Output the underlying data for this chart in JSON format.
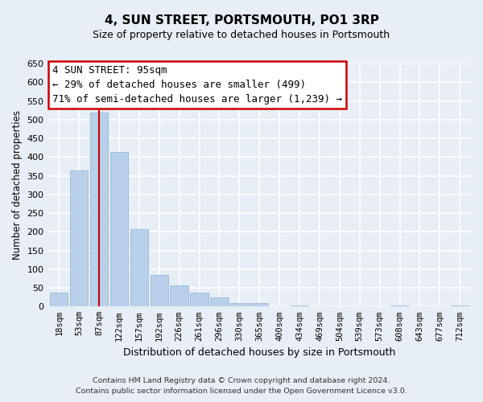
{
  "title": "4, SUN STREET, PORTSMOUTH, PO1 3RP",
  "subtitle": "Size of property relative to detached houses in Portsmouth",
  "xlabel": "Distribution of detached houses by size in Portsmouth",
  "ylabel": "Number of detached properties",
  "bar_labels": [
    "18sqm",
    "53sqm",
    "87sqm",
    "122sqm",
    "157sqm",
    "192sqm",
    "226sqm",
    "261sqm",
    "296sqm",
    "330sqm",
    "365sqm",
    "400sqm",
    "434sqm",
    "469sqm",
    "504sqm",
    "539sqm",
    "573sqm",
    "608sqm",
    "643sqm",
    "677sqm",
    "712sqm"
  ],
  "bar_values": [
    38,
    365,
    519,
    413,
    207,
    84,
    56,
    37,
    25,
    10,
    10,
    0,
    3,
    0,
    0,
    0,
    0,
    2,
    0,
    0,
    2
  ],
  "bar_color": "#b8d0ea",
  "bar_edge_color": "#9ab8d8",
  "vline_x_idx": 2,
  "vline_color": "#cc0000",
  "annotation_title": "4 SUN STREET: 95sqm",
  "annotation_line1": "← 29% of detached houses are smaller (499)",
  "annotation_line2": "71% of semi-detached houses are larger (1,239) →",
  "box_facecolor": "#ffffff",
  "box_edgecolor": "#cc0000",
  "ylim": [
    0,
    650
  ],
  "yticks": [
    0,
    50,
    100,
    150,
    200,
    250,
    300,
    350,
    400,
    450,
    500,
    550,
    600,
    650
  ],
  "footer_line1": "Contains HM Land Registry data © Crown copyright and database right 2024.",
  "footer_line2": "Contains public sector information licensed under the Open Government Licence v3.0.",
  "background_color": "#e8eef5",
  "plot_background_color": "#e8eef5",
  "title_fontsize": 11,
  "subtitle_fontsize": 9,
  "ylabel_fontsize": 8.5,
  "xlabel_fontsize": 9,
  "tick_fontsize": 8,
  "xtick_fontsize": 7.5,
  "annotation_fontsize": 9,
  "footer_fontsize": 6.8,
  "grid_color": "#ffffff",
  "grid_linewidth": 1.2
}
